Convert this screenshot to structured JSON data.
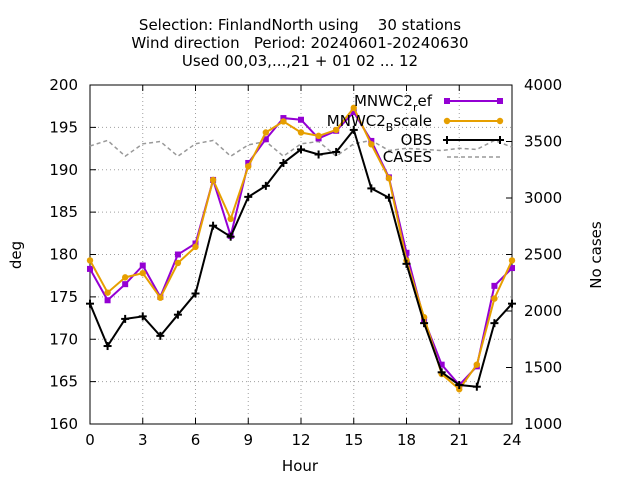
{
  "chart_data": {
    "type": "line",
    "title_lines": [
      "Selection: FinlandNorth using    30 stations",
      "Wind direction   Period: 20240601-20240630",
      "Used 00,03,...,21 + 01 02 ... 12"
    ],
    "xlabel": "Hour",
    "ylabel": "deg",
    "y2label": "No cases",
    "xlim": [
      0,
      24
    ],
    "ylim": [
      160,
      200
    ],
    "y2lim": [
      1000,
      4000
    ],
    "xticks": [
      "0",
      "3",
      "6",
      "9",
      "12",
      "15",
      "18",
      "21",
      "24"
    ],
    "yticks": [
      "160",
      "165",
      "170",
      "175",
      "180",
      "185",
      "190",
      "195",
      "200"
    ],
    "y2ticks": [
      "1000",
      "1500",
      "2000",
      "2500",
      "3000",
      "3500",
      "4000"
    ],
    "grid": true,
    "legend_position": "top-right",
    "x": [
      0,
      1,
      2,
      3,
      4,
      5,
      6,
      7,
      8,
      9,
      10,
      11,
      12,
      13,
      14,
      15,
      16,
      17,
      18,
      19,
      20,
      21,
      22,
      23,
      24
    ],
    "series": [
      {
        "name": "MNWC2_ref",
        "legend_main": "MNWC2",
        "legend_sub": "r",
        "legend_rest": "ef",
        "color": "#9400d3",
        "marker": "square",
        "axis": "y",
        "values": [
          178.3,
          174.6,
          176.5,
          178.7,
          175.0,
          180.0,
          181.3,
          188.8,
          182.2,
          190.8,
          193.6,
          196.1,
          195.9,
          193.7,
          194.6,
          196.8,
          193.4,
          189.1,
          180.2,
          172.3,
          167.0,
          164.6,
          166.8,
          176.3,
          178.4
        ]
      },
      {
        "name": "MNWC2_Bscale",
        "legend_main": "MNWC2",
        "legend_sub": "B",
        "legend_rest": "scale",
        "color": "#e69f00",
        "marker": "circle",
        "axis": "y",
        "values": [
          179.3,
          175.5,
          177.3,
          177.8,
          174.9,
          179.0,
          180.9,
          188.8,
          184.2,
          190.4,
          194.4,
          195.7,
          194.4,
          194.0,
          194.7,
          197.3,
          193.0,
          189.0,
          179.3,
          172.6,
          165.9,
          164.1,
          167.0,
          174.8,
          179.3
        ]
      },
      {
        "name": "OBS",
        "color": "#000000",
        "marker": "plus",
        "axis": "y",
        "values": [
          174.2,
          169.2,
          172.4,
          172.7,
          170.4,
          172.9,
          175.4,
          183.4,
          182.1,
          186.8,
          188.1,
          190.8,
          192.4,
          191.8,
          192.1,
          194.7,
          187.8,
          186.7,
          178.9,
          171.9,
          166.1,
          164.6,
          164.4,
          171.9,
          174.2
        ]
      },
      {
        "name": "CASES",
        "color": "#999999",
        "dashed": true,
        "axis": "y2",
        "values": [
          3460,
          3510,
          3370,
          3480,
          3500,
          3370,
          3480,
          3510,
          3370,
          3470,
          3500,
          3370,
          3480,
          3500,
          3370,
          3480,
          3510,
          3420,
          3440,
          3430,
          3420,
          3440,
          3430,
          3510,
          3450
        ]
      }
    ]
  }
}
